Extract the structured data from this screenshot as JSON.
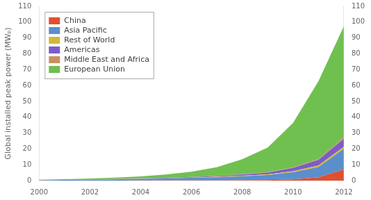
{
  "chart_data": {
    "type": "area",
    "stacked": true,
    "x": [
      2000,
      2001,
      2002,
      2003,
      2004,
      2005,
      2006,
      2007,
      2008,
      2009,
      2010,
      2011,
      2012
    ],
    "series": [
      {
        "name": "China",
        "color": "#e05030",
        "values": [
          0.02,
          0.03,
          0.04,
          0.05,
          0.07,
          0.08,
          0.1,
          0.13,
          0.17,
          0.3,
          0.8,
          2.1,
          7.0
        ]
      },
      {
        "name": "Asia Pacific",
        "color": "#5b8fcc",
        "values": [
          0.25,
          0.38,
          0.55,
          0.75,
          0.98,
          1.25,
          1.6,
          2.0,
          2.6,
          3.2,
          4.5,
          6.5,
          13.0
        ]
      },
      {
        "name": "Rest of World",
        "color": "#d4b83a",
        "values": [
          0.04,
          0.05,
          0.07,
          0.09,
          0.11,
          0.14,
          0.18,
          0.23,
          0.3,
          0.42,
          0.65,
          0.95,
          1.4
        ]
      },
      {
        "name": "Americas",
        "color": "#7b5cc8",
        "values": [
          0.06,
          0.08,
          0.1,
          0.13,
          0.18,
          0.25,
          0.35,
          0.5,
          0.75,
          1.1,
          2.0,
          3.5,
          5.0
        ]
      },
      {
        "name": "Middle East and Africa",
        "color": "#c89060",
        "values": [
          0.02,
          0.03,
          0.04,
          0.05,
          0.06,
          0.08,
          0.1,
          0.13,
          0.18,
          0.25,
          0.4,
          0.65,
          1.0
        ]
      },
      {
        "name": "European Union",
        "color": "#70c050",
        "values": [
          0.18,
          0.3,
          0.5,
          0.75,
          1.2,
          2.0,
          3.3,
          5.5,
          9.5,
          15.5,
          28.0,
          49.0,
          70.0
        ]
      }
    ],
    "ylabel": "Global installed peak power (MWₚ)",
    "xlim": [
      2000,
      2012
    ],
    "xticks": [
      2000,
      2002,
      2004,
      2006,
      2008,
      2010,
      2012
    ],
    "ylim": [
      0,
      110
    ],
    "yticks": [
      0,
      10,
      20,
      30,
      40,
      50,
      60,
      70,
      80,
      90,
      100,
      110
    ],
    "y2lim": [
      0,
      110
    ],
    "y2ticks": [
      0,
      10,
      20,
      30,
      40,
      50,
      60,
      70,
      80,
      90,
      100,
      110
    ],
    "legend": "upper left",
    "grid": false
  }
}
